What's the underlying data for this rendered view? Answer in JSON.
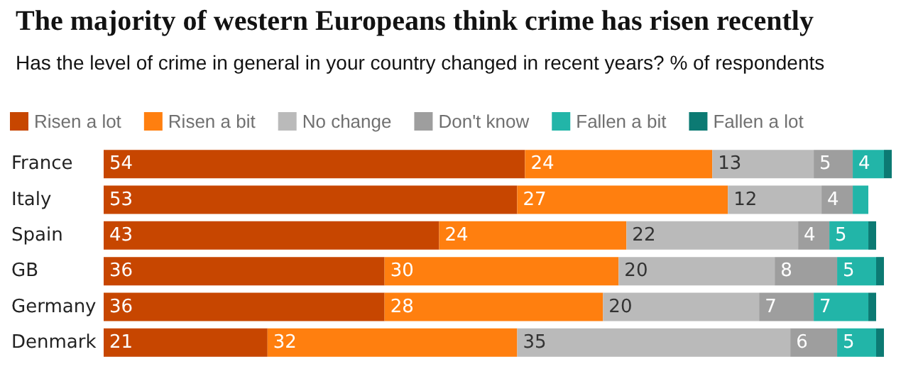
{
  "chart_data": {
    "type": "bar",
    "orientation": "horizontal",
    "stacked": true,
    "title": "The majority of western Europeans think crime has risen recently",
    "subtitle": "Has the level of crime in general in your country changed in recent years? % of respondents",
    "categories": [
      "France",
      "Italy",
      "Spain",
      "GB",
      "Germany",
      "Denmark"
    ],
    "legend": "top left",
    "grid": false,
    "series": [
      {
        "name": "Risen a lot",
        "color": "#c74600",
        "values": [
          54,
          53,
          43,
          36,
          36,
          21
        ],
        "value_labels": [
          "54",
          "53",
          "43",
          "36",
          "36",
          "21"
        ]
      },
      {
        "name": "Risen a bit",
        "color": "#ff7f0f",
        "values": [
          24,
          27,
          24,
          30,
          28,
          32
        ],
        "value_labels": [
          "24",
          "27",
          "24",
          "30",
          "28",
          "32"
        ]
      },
      {
        "name": "No change",
        "color": "#bababa",
        "values": [
          13,
          12,
          22,
          20,
          20,
          35
        ],
        "value_labels": [
          "13",
          "12",
          "22",
          "20",
          "20",
          "35"
        ]
      },
      {
        "name": "Don't know",
        "color": "#9e9e9e",
        "values": [
          5,
          4,
          4,
          8,
          7,
          6
        ],
        "value_labels": [
          "5",
          "4",
          "4",
          "8",
          "7",
          "6"
        ]
      },
      {
        "name": "Fallen a bit",
        "color": "#22b5a8",
        "values": [
          4,
          2,
          5,
          5,
          7,
          5
        ],
        "value_labels": [
          "4",
          null,
          "5",
          "5",
          "7",
          "5"
        ]
      },
      {
        "name": "Fallen a lot",
        "color": "#0c7a73",
        "values": [
          1,
          0,
          1,
          1,
          1,
          1
        ],
        "value_labels": [
          null,
          null,
          null,
          null,
          null,
          null
        ]
      }
    ]
  }
}
